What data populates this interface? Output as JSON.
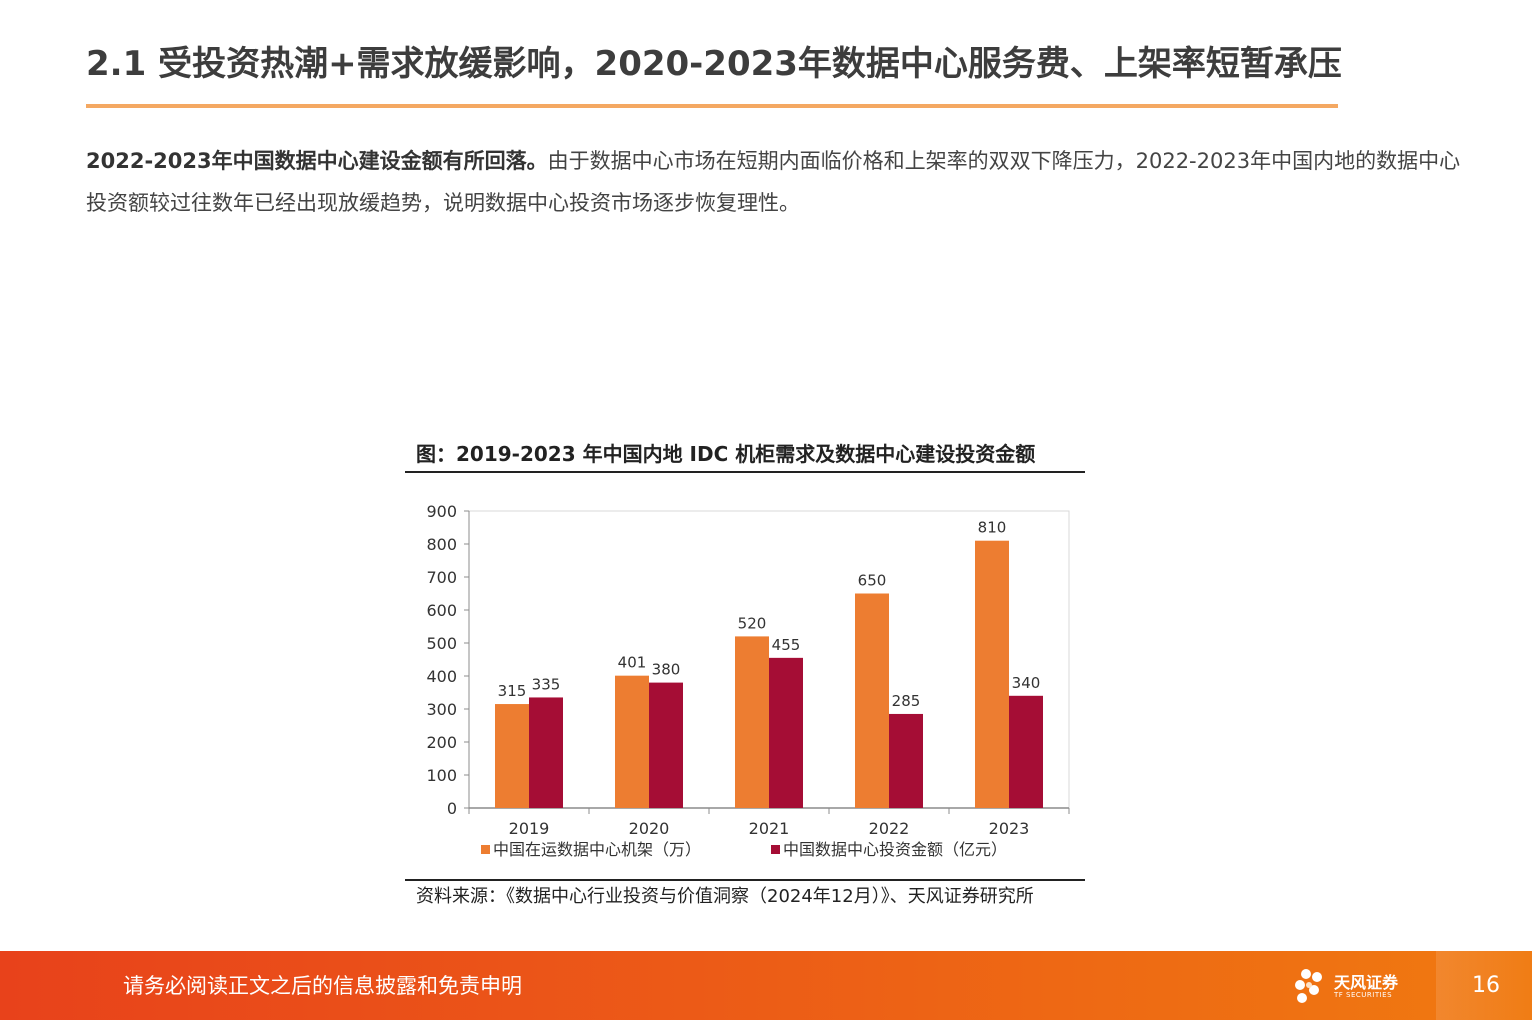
{
  "header": {
    "title": "2.1 受投资热潮+需求放缓影响，2020-2023年数据中心服务费、上架率短暂承压"
  },
  "intro": {
    "bold": "2022-2023年中国数据中心建设金额有所回落。",
    "text": "由于数据中心市场在短期内面临价格和上架率的双双下降压力，2022-2023年中国内地的数据中心投资额较过往数年已经出现放缓趋势，说明数据中心投资市场逐步恢复理性。"
  },
  "figure": {
    "title": "图：2019-2023 年中国内地 IDC 机柜需求及数据中心建设投资金额",
    "source": "资料来源：《数据中心行业投资与价值洞察（2024年12月）》、天风证券研究所"
  },
  "chart_data": {
    "type": "bar",
    "categories": [
      "2019",
      "2020",
      "2021",
      "2022",
      "2023"
    ],
    "series": [
      {
        "name": "中国在运数据中心机架（万）",
        "values": [
          315,
          401,
          520,
          650,
          810
        ],
        "color": "#ed7d31"
      },
      {
        "name": "中国数据中心投资金额（亿元）",
        "values": [
          335,
          380,
          455,
          285,
          340
        ],
        "color": "#a50d35"
      }
    ],
    "ylim": [
      0,
      900
    ],
    "yticks": [
      0,
      100,
      200,
      300,
      400,
      500,
      600,
      700,
      800,
      900
    ],
    "grid": false,
    "legend": "bottom"
  },
  "footer": {
    "disclaimer": "请务必阅读正文之后的信息披露和免责申明",
    "logo_cn": "天风证券",
    "logo_en": "TF SECURITIES",
    "page_number": "16",
    "brand_color": "#ec5a17"
  }
}
